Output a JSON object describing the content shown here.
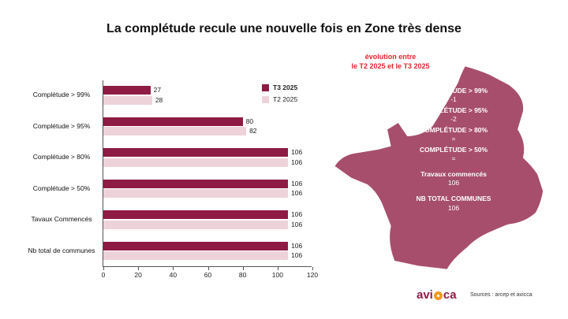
{
  "page": {
    "title": "La complétude recule une nouvelle fois en Zone très dense"
  },
  "chart_data": {
    "type": "bar",
    "orientation": "horizontal",
    "title": "",
    "xlabel": "",
    "ylabel": "",
    "categories": [
      "Complétude > 99%",
      "Complétude > 95%",
      "Complétude > 80%",
      "Complétude > 50%",
      "Tavaux Commencés",
      "Nb total de communes"
    ],
    "series": [
      {
        "name": "T3 2025",
        "color": "#8e1b44",
        "values": [
          27,
          80,
          106,
          106,
          106,
          106
        ]
      },
      {
        "name": "T2 2025",
        "color": "#eed2da",
        "values": [
          28,
          82,
          106,
          106,
          106,
          106
        ]
      }
    ],
    "xlim": [
      0,
      120
    ],
    "xticks": [
      0,
      20,
      40,
      60,
      80,
      100,
      120
    ],
    "grid": false,
    "legend_position": "top-right",
    "value_labels": true
  },
  "map_panel": {
    "heading_line1": "évolution entre",
    "heading_line2": "le T2 2025 et le T3 2025",
    "heading_color": "#e4262b",
    "fill_color": "#a74e6d",
    "entries": [
      {
        "label": "COMPLÉTUDE > 99%",
        "value": "-1"
      },
      {
        "label": "COMPLÉTUDE > 95%",
        "value": "-2"
      },
      {
        "label": "COMPLÉTUDE > 80%",
        "value": "="
      },
      {
        "label": "COMPLÉTUDE > 50%",
        "value": "="
      },
      {
        "label": "Travaux commencés",
        "value": "106"
      },
      {
        "label": "NB TOTAL COMMUNES",
        "value": "106"
      }
    ]
  },
  "footer": {
    "logo_left": "avi",
    "logo_right": "ca",
    "logo_color": "#8e1b44",
    "logo_dot_color": "#f6991d",
    "sources": "Sources : arcep et avicca"
  }
}
